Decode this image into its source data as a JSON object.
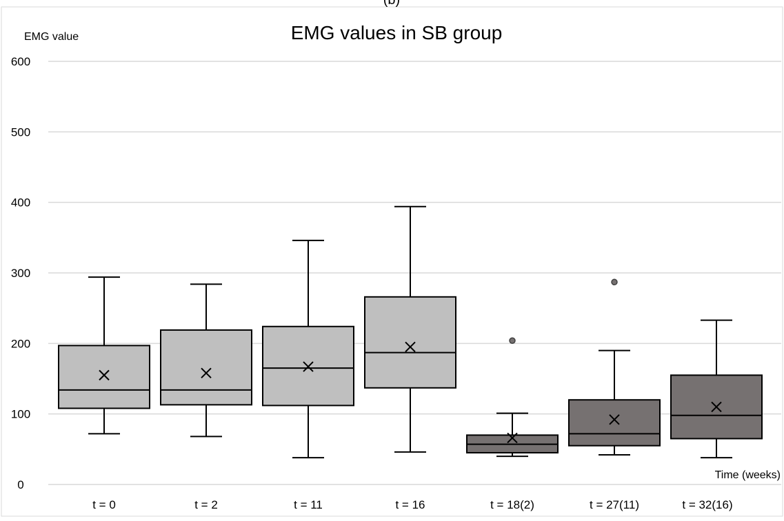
{
  "panel_label": "(b)",
  "chart_data": {
    "type": "box",
    "title": "EMG values in SB group",
    "ylabel": "EMG value",
    "xlabel": "Time (weeks)",
    "ylim": [
      0,
      600
    ],
    "yticks": [
      0,
      100,
      200,
      300,
      400,
      500,
      600
    ],
    "grid": true,
    "colors": {
      "light_box": "#bfbfbf",
      "dark_box": "#767171",
      "grid": "#d9d9d9",
      "stroke": "#000000"
    },
    "categories": [
      "t = 0",
      "t = 2",
      "t = 11",
      "t = 16",
      "t = 18(2)",
      "t = 27(11)",
      "t = 32(16)"
    ],
    "boxes": [
      {
        "category": "t = 0",
        "min": 72,
        "q1": 108,
        "median": 134,
        "q3": 197,
        "max": 294,
        "mean": 155,
        "outliers": [],
        "shade": "light"
      },
      {
        "category": "t = 2",
        "min": 68,
        "q1": 113,
        "median": 134,
        "q3": 219,
        "max": 284,
        "mean": 158,
        "outliers": [],
        "shade": "light"
      },
      {
        "category": "t = 11",
        "min": 38,
        "q1": 112,
        "median": 165,
        "q3": 224,
        "max": 346,
        "mean": 167,
        "outliers": [],
        "shade": "light"
      },
      {
        "category": "t = 16",
        "min": 46,
        "q1": 137,
        "median": 187,
        "q3": 266,
        "max": 394,
        "mean": 195,
        "outliers": [],
        "shade": "light"
      },
      {
        "category": "t = 18(2)",
        "min": 40,
        "q1": 45,
        "median": 57,
        "q3": 70,
        "max": 101,
        "mean": 66,
        "outliers": [
          204
        ],
        "shade": "dark"
      },
      {
        "category": "t = 27(11)",
        "min": 42,
        "q1": 55,
        "median": 72,
        "q3": 120,
        "max": 190,
        "mean": 92,
        "outliers": [
          287
        ],
        "shade": "dark"
      },
      {
        "category": "t = 32(16)",
        "min": 38,
        "q1": 65,
        "median": 98,
        "q3": 155,
        "max": 233,
        "mean": 110,
        "outliers": [],
        "shade": "dark"
      }
    ]
  }
}
